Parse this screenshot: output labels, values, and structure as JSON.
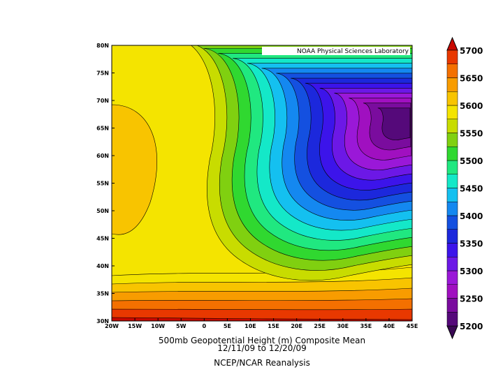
{
  "map": {
    "credit": "NOAA Physical Sciences Laboratory",
    "title": "500mb Geopotential Height (m) Composite Mean",
    "dates": "12/11/09   to 12/20/09",
    "source": "NCEP/NCAR Reanalysis",
    "lat_labels": [
      "80N",
      "75N",
      "70N",
      "65N",
      "60N",
      "55N",
      "50N",
      "45N",
      "40N",
      "35N",
      "30N"
    ],
    "lon_labels": [
      "20W",
      "15W",
      "10W",
      "5W",
      "0",
      "5E",
      "10E",
      "15E",
      "20E",
      "25E",
      "30E",
      "35E",
      "40E",
      "45E"
    ],
    "colorbar": {
      "levels": [
        5700,
        5650,
        5600,
        5550,
        5500,
        5450,
        5400,
        5350,
        5300,
        5250,
        5200
      ],
      "colors": [
        "#3a0854",
        "#55097a",
        "#7a0c9e",
        "#a010c0",
        "#9a18d8",
        "#6c18e6",
        "#3c14ea",
        "#1c28dc",
        "#1450e0",
        "#1488f0",
        "#14c0f0",
        "#14e8c8",
        "#20e880",
        "#30d830",
        "#80d010",
        "#c8dc00",
        "#f4e400",
        "#f8c400",
        "#f89c00",
        "#f47000",
        "#e83800",
        "#c80800"
      ]
    }
  }
}
